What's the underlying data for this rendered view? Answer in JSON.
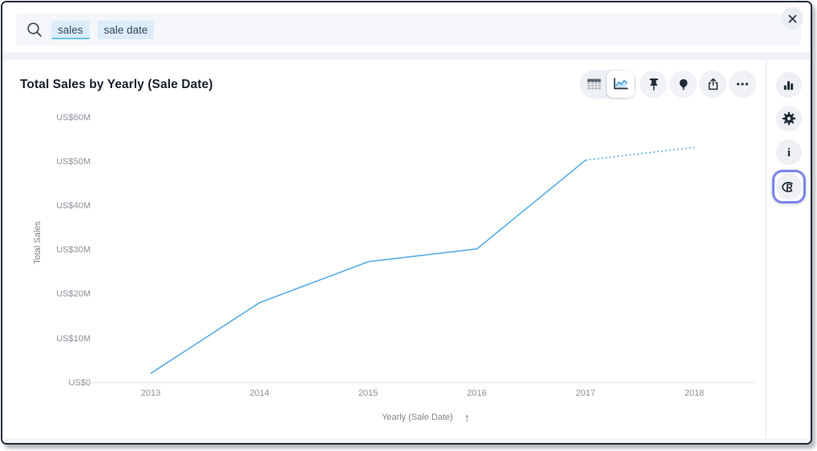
{
  "search": {
    "tokens": [
      {
        "label": "sales",
        "active": true
      },
      {
        "label": "sale date",
        "active": false
      }
    ],
    "close_label": "✕"
  },
  "card": {
    "title": "Total Sales by Yearly (Sale Date)"
  },
  "toolbar": {
    "view_toggle": [
      "table-view",
      "chart-view"
    ],
    "selected_view": "chart-view",
    "actions": [
      "pin",
      "insight",
      "share",
      "more-options"
    ]
  },
  "right_rail": {
    "items": [
      "chart-type",
      "settings",
      "info",
      "r-analysis"
    ],
    "selected": "r-analysis",
    "highlight_color": "#7c82e9"
  },
  "chart_data": {
    "type": "line",
    "title": "Total Sales by Yearly (Sale Date)",
    "xlabel": "Yearly (Sale Date)",
    "ylabel": "Total Sales",
    "sort_arrow": "↑",
    "sort_direction": "ascending",
    "x": [
      "2013",
      "2014",
      "2015",
      "2016",
      "2017",
      "2018"
    ],
    "values": [
      2.1,
      18.1,
      27.4,
      30.3,
      50.4,
      53.3
    ],
    "unit": "million USD",
    "ylim": [
      0,
      60
    ],
    "y_tick_values": [
      60,
      50,
      40,
      30,
      20,
      10,
      0
    ],
    "y_tick_labels": [
      "US$60M",
      "US$50M",
      "US$40M",
      "US$30M",
      "US$20M",
      "US$10M",
      "US$0"
    ],
    "line_color": "#57ade6",
    "dotted_last_segment": true,
    "grid": false,
    "legend": false
  }
}
